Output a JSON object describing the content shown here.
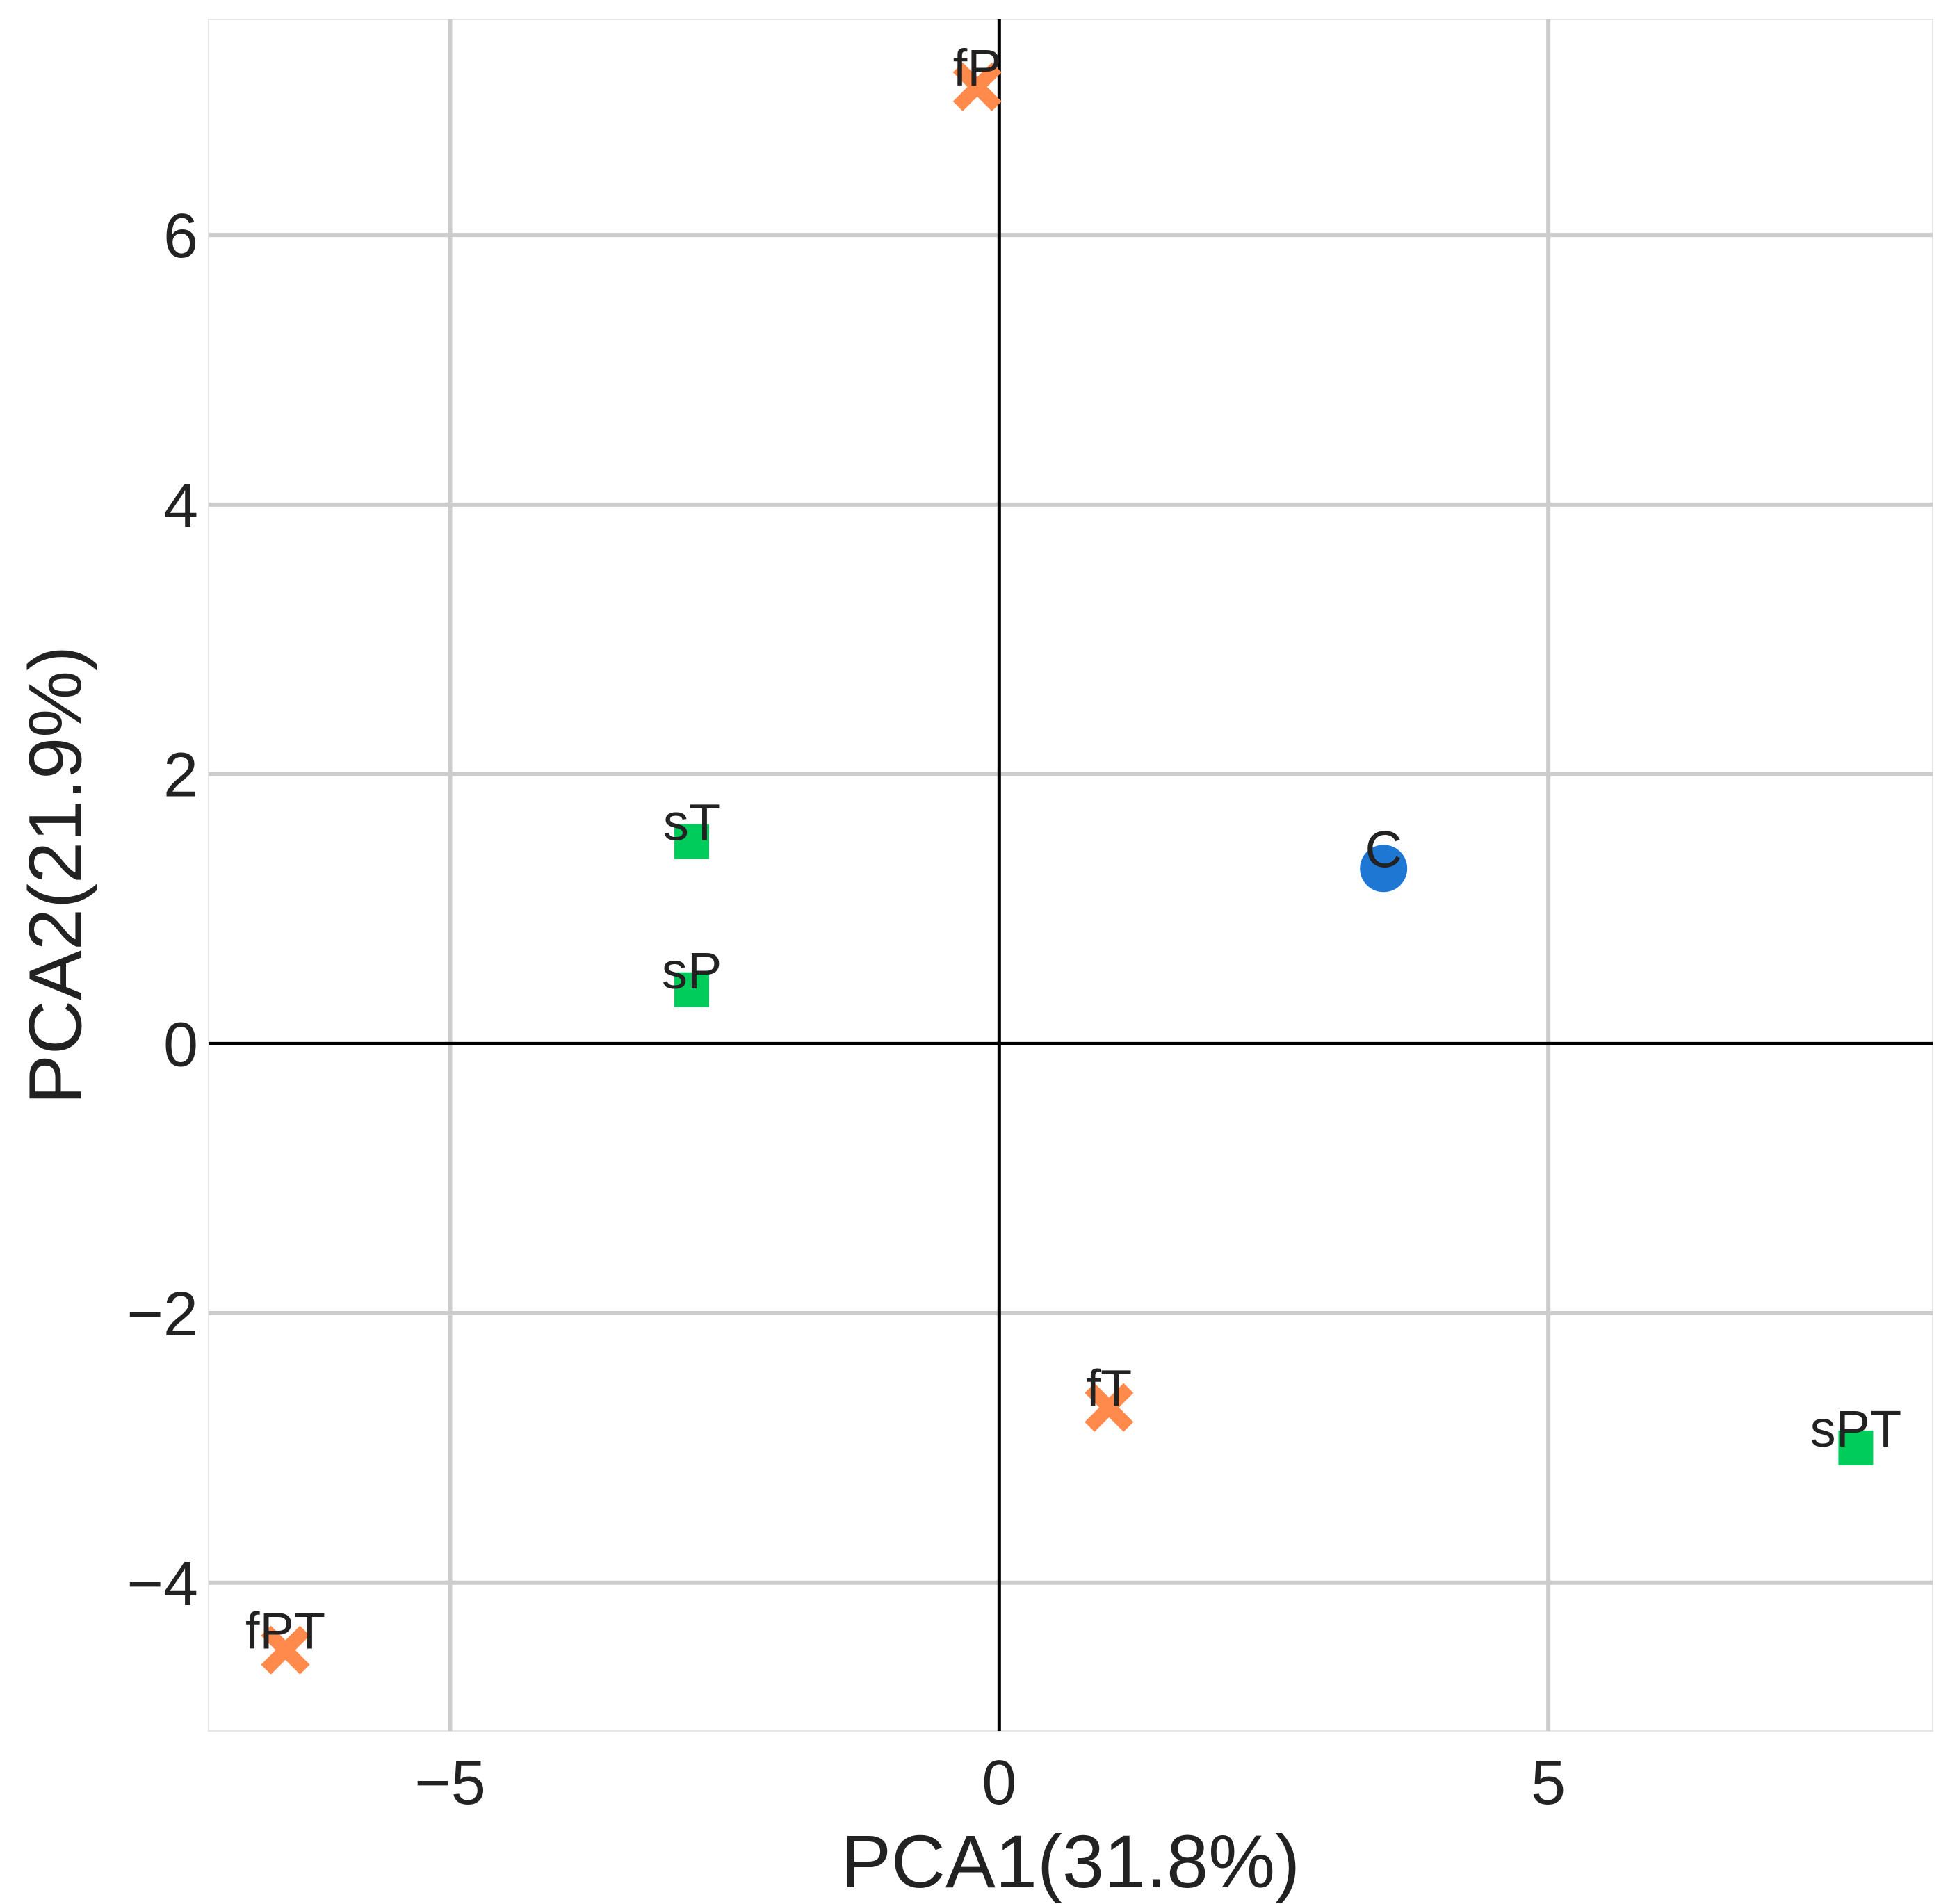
{
  "chart_data": {
    "type": "scatter",
    "title": "",
    "xlabel": "PCA1(31.8%)",
    "ylabel": "PCA2(21.9%)",
    "xlim": [
      -7.2,
      8.5
    ],
    "ylim": [
      -5.1,
      7.6
    ],
    "xticks": [
      {
        "value": -5,
        "label": "−5"
      },
      {
        "value": 0,
        "label": "0"
      },
      {
        "value": 5,
        "label": "5"
      }
    ],
    "yticks": [
      {
        "value": -4,
        "label": "−4"
      },
      {
        "value": -2,
        "label": "−2"
      },
      {
        "value": 0,
        "label": "0"
      },
      {
        "value": 2,
        "label": "2"
      },
      {
        "value": 4,
        "label": "4"
      },
      {
        "value": 6,
        "label": "6"
      }
    ],
    "grid": true,
    "reference_lines": {
      "x": 0,
      "y": 0
    },
    "groups": [
      {
        "marker": "circle",
        "color": "#1f77d4",
        "points": [
          {
            "label": "C",
            "x": 3.5,
            "y": 1.3
          }
        ]
      },
      {
        "marker": "square",
        "color": "#00cc5c",
        "points": [
          {
            "label": "sT",
            "x": -2.8,
            "y": 1.5
          },
          {
            "label": "sP",
            "x": -2.8,
            "y": 0.4
          },
          {
            "label": "sPT",
            "x": 7.8,
            "y": -3.0
          }
        ]
      },
      {
        "marker": "x",
        "color": "#ff8a4c",
        "points": [
          {
            "label": "fP",
            "x": -0.2,
            "y": 7.1
          },
          {
            "label": "fT",
            "x": 1.0,
            "y": -2.7
          },
          {
            "label": "fPT",
            "x": -6.5,
            "y": -4.5
          }
        ]
      }
    ]
  }
}
